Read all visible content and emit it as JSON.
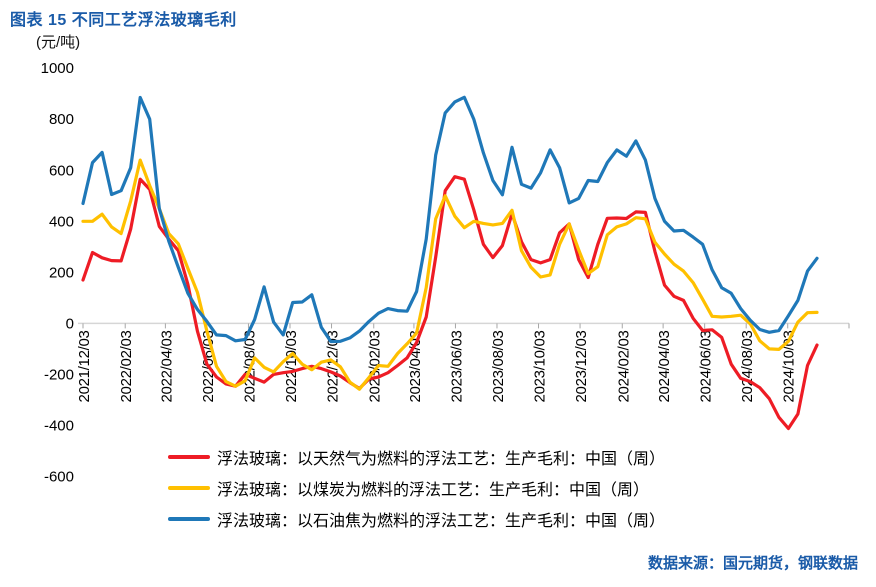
{
  "title": "图表 15  不同工艺浮法玻璃毛利",
  "unit_label": "(元/吨)",
  "source_note": "数据来源：国元期货，钢联数据",
  "colors": {
    "title_blue": "#1A5BA8",
    "axis_line": "#D6D6D6",
    "tick_mark": "#A6A6A6",
    "label_text": "#000000"
  },
  "chart_data": {
    "type": "line",
    "title": "不同工艺浮法玻璃毛利",
    "ylabel": "(元/吨)",
    "ylim": [
      -600,
      1000
    ],
    "y_ticks": [
      1000,
      800,
      600,
      400,
      200,
      0,
      -200,
      -400,
      -600
    ],
    "grid": "zero-line-only",
    "legend_position": "bottom-left",
    "start_date": "2021-12-03",
    "step_days": 14,
    "total_days": 1078,
    "x_ticks": [
      {
        "label": "2021/12/03",
        "day": 0
      },
      {
        "label": "2022/02/03",
        "day": 62
      },
      {
        "label": "2022/04/03",
        "day": 121
      },
      {
        "label": "2022/06/03",
        "day": 182
      },
      {
        "label": "2022/08/03",
        "day": 243
      },
      {
        "label": "2022/10/03",
        "day": 304
      },
      {
        "label": "2022/12/03",
        "day": 365
      },
      {
        "label": "2023/02/03",
        "day": 427
      },
      {
        "label": "2023/04/03",
        "day": 486
      },
      {
        "label": "2023/06/03",
        "day": 547
      },
      {
        "label": "2023/08/03",
        "day": 608
      },
      {
        "label": "2023/10/03",
        "day": 669
      },
      {
        "label": "2023/12/03",
        "day": 730
      },
      {
        "label": "2024/02/03",
        "day": 792
      },
      {
        "label": "2024/04/03",
        "day": 852
      },
      {
        "label": "2024/06/03",
        "day": 913
      },
      {
        "label": "2024/08/03",
        "day": 974
      },
      {
        "label": "2024/10/03",
        "day": 1035
      }
    ],
    "series": [
      {
        "name": "浮法玻璃：以天然气为燃料的浮法工艺：生产毛利：中国（周）",
        "color": "#EE1C25",
        "values": [
          170,
          278,
          257,
          246,
          245,
          370,
          565,
          525,
          380,
          330,
          285,
          153,
          -30,
          -160,
          -210,
          -237,
          -246,
          -200,
          -215,
          -230,
          -200,
          -193,
          -188,
          -177,
          -168,
          -177,
          -190,
          -206,
          -232,
          -255,
          -218,
          -210,
          -193,
          -165,
          -135,
          -75,
          25,
          260,
          520,
          575,
          565,
          445,
          310,
          258,
          305,
          430,
          320,
          250,
          237,
          250,
          355,
          390,
          250,
          180,
          310,
          412,
          413,
          411,
          437,
          435,
          282,
          150,
          106,
          90,
          20,
          -28,
          -25,
          -55,
          -160,
          -215,
          -228,
          -252,
          -295,
          -368,
          -412,
          -355,
          -165,
          -85
        ]
      },
      {
        "name": "浮法玻璃：以煤炭为燃料的浮法工艺：生产毛利：中国（周）",
        "color": "#FFC000",
        "values": [
          400,
          400,
          428,
          378,
          352,
          480,
          640,
          540,
          450,
          352,
          312,
          215,
          122,
          -30,
          -168,
          -228,
          -246,
          -225,
          -135,
          -172,
          -190,
          -150,
          -118,
          -160,
          -182,
          -152,
          -143,
          -170,
          -230,
          -258,
          -212,
          -165,
          -168,
          -118,
          -80,
          -38,
          140,
          410,
          500,
          420,
          375,
          400,
          392,
          386,
          392,
          443,
          285,
          220,
          182,
          190,
          310,
          390,
          288,
          195,
          222,
          347,
          378,
          390,
          414,
          410,
          318,
          272,
          232,
          205,
          160,
          95,
          28,
          25,
          28,
          32,
          -2,
          -68,
          -100,
          -102,
          -70,
          5,
          42,
          43
        ]
      },
      {
        "name": "浮法玻璃：以石油焦为燃料的浮法工艺：生产毛利：中国（周）",
        "color": "#1F78B8",
        "values": [
          470,
          630,
          670,
          505,
          520,
          610,
          885,
          800,
          450,
          322,
          220,
          118,
          55,
          8,
          -45,
          -48,
          -68,
          -63,
          15,
          143,
          5,
          -45,
          82,
          84,
          112,
          -15,
          -71,
          -70,
          -57,
          -30,
          8,
          40,
          58,
          50,
          48,
          125,
          330,
          660,
          825,
          868,
          886,
          800,
          668,
          560,
          504,
          690,
          545,
          530,
          590,
          680,
          610,
          472,
          490,
          560,
          556,
          630,
          680,
          655,
          715,
          640,
          490,
          400,
          362,
          365,
          338,
          310,
          210,
          140,
          118,
          58,
          12,
          -24,
          -35,
          -28,
          30,
          90,
          205,
          255
        ]
      }
    ]
  }
}
